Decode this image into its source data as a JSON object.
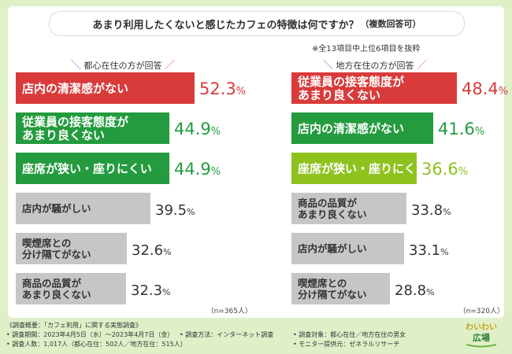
{
  "title": "あまり利用したくないと感じたカフェの特徴は何ですか？",
  "title_suffix": "（複数回答可）",
  "note": "※全13項目中上位6項目を抜粋",
  "chart_data": [
    {
      "type": "bar",
      "group": "都心在住の方が回答",
      "n_label": "（n=365人）",
      "categories": [
        "店内の清潔感がない",
        "従業員の接客態度が\nあまり良くない",
        "座席が狭い・座りにくい",
        "店内が騒がしい",
        "喫煙席との\n分け隔てがない",
        "商品の品質が\nあまり良くない"
      ],
      "values": [
        52.3,
        44.9,
        44.9,
        39.5,
        32.6,
        32.3
      ],
      "value_labels": [
        "52.3%",
        "44.9%",
        "44.9%",
        "39.5%",
        "32.6%",
        "32.3%"
      ],
      "colors": [
        "#d93b3b",
        "#239b3e",
        "#239b3e",
        "#c6c6c6",
        "#c6c6c6",
        "#c6c6c6"
      ],
      "xlim": [
        0,
        60
      ]
    },
    {
      "type": "bar",
      "group": "地方在住の方が回答",
      "n_label": "（n=320人）",
      "categories": [
        "従業員の接客態度が\nあまり良くない",
        "店内の清潔感がない",
        "座席が狭い・座りにくい",
        "商品の品質が\nあまり良くない",
        "店内が騒がしい",
        "喫煙席との\n分け隔てがない"
      ],
      "values": [
        48.4,
        41.6,
        36.6,
        33.8,
        33.1,
        28.8
      ],
      "value_labels": [
        "48.4%",
        "41.6%",
        "36.6%",
        "33.8%",
        "33.1%",
        "28.8%"
      ],
      "colors": [
        "#d93b3b",
        "#239b3e",
        "#8ec21f",
        "#c6c6c6",
        "#c6c6c6",
        "#c6c6c6"
      ],
      "xlim": [
        0,
        60
      ]
    }
  ],
  "footer": {
    "survey_title": "《調査概要：「カフェ利用」に関する実態調査》",
    "period": "• 調査期間：2023年4月5日（水）～2023年4月7日（金）",
    "method": "• 調査方法：インターネット調査",
    "respondents": "• 調査人数：1,017人（都心在住：502人／地方在住：515人）",
    "target": "• 調査対象：都心在住／地方在住の男女",
    "monitor": "• モニター提供元：ゼネラルリサーチ"
  },
  "logo": {
    "line1": "わいわい",
    "line2": "広場"
  }
}
